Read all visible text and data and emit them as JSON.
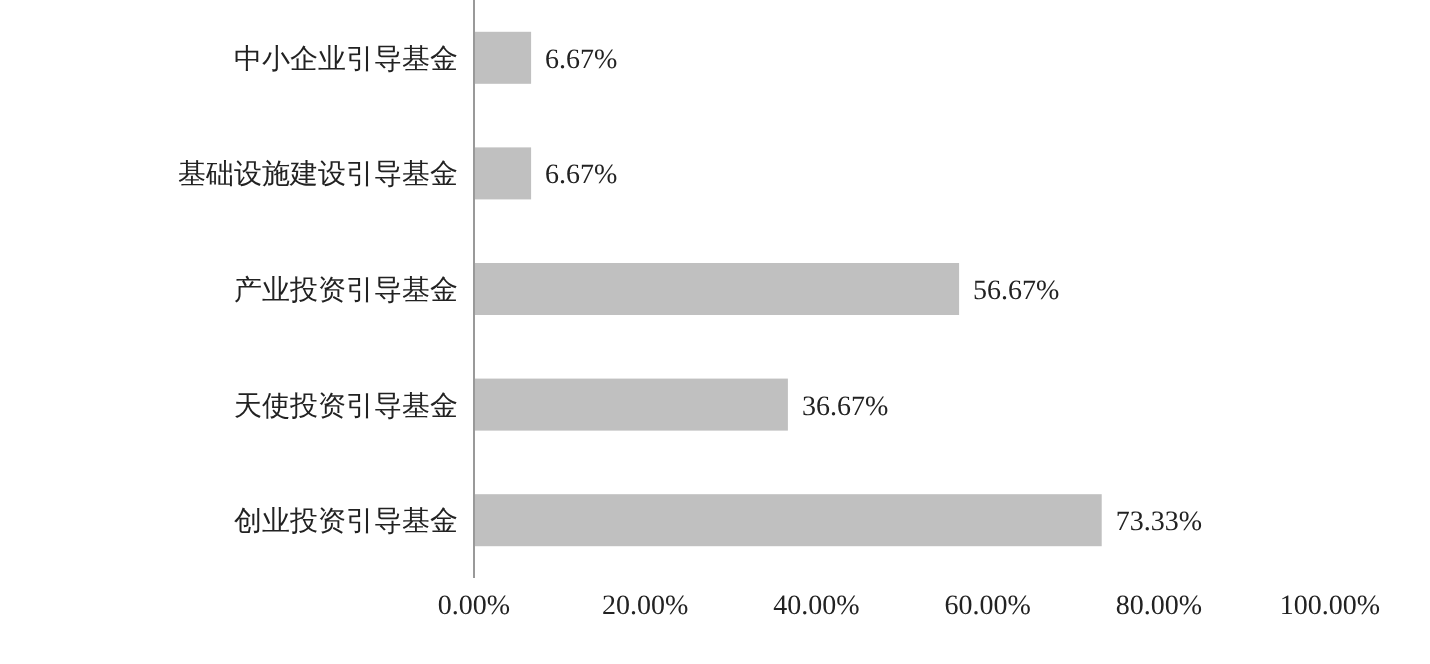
{
  "chart_data": {
    "type": "bar",
    "orientation": "horizontal",
    "categories": [
      "中小企业引导基金",
      "基础设施建设引导基金",
      "产业投资引导基金",
      "天使投资引导基金",
      "创业投资引导基金"
    ],
    "values": [
      6.67,
      6.67,
      56.67,
      36.67,
      73.33
    ],
    "value_labels": [
      "6.67%",
      "6.67%",
      "56.67%",
      "36.67%",
      "73.33%"
    ],
    "color": "#c0c0c0",
    "xlim": [
      0,
      100
    ],
    "xticks": [
      {
        "value": 0,
        "label": "0.00%"
      },
      {
        "value": 20,
        "label": "20.00%"
      },
      {
        "value": 40,
        "label": "40.00%"
      },
      {
        "value": 60,
        "label": "60.00%"
      },
      {
        "value": 80,
        "label": "80.00%"
      },
      {
        "value": 100,
        "label": "100.00%"
      }
    ],
    "grid": false
  }
}
